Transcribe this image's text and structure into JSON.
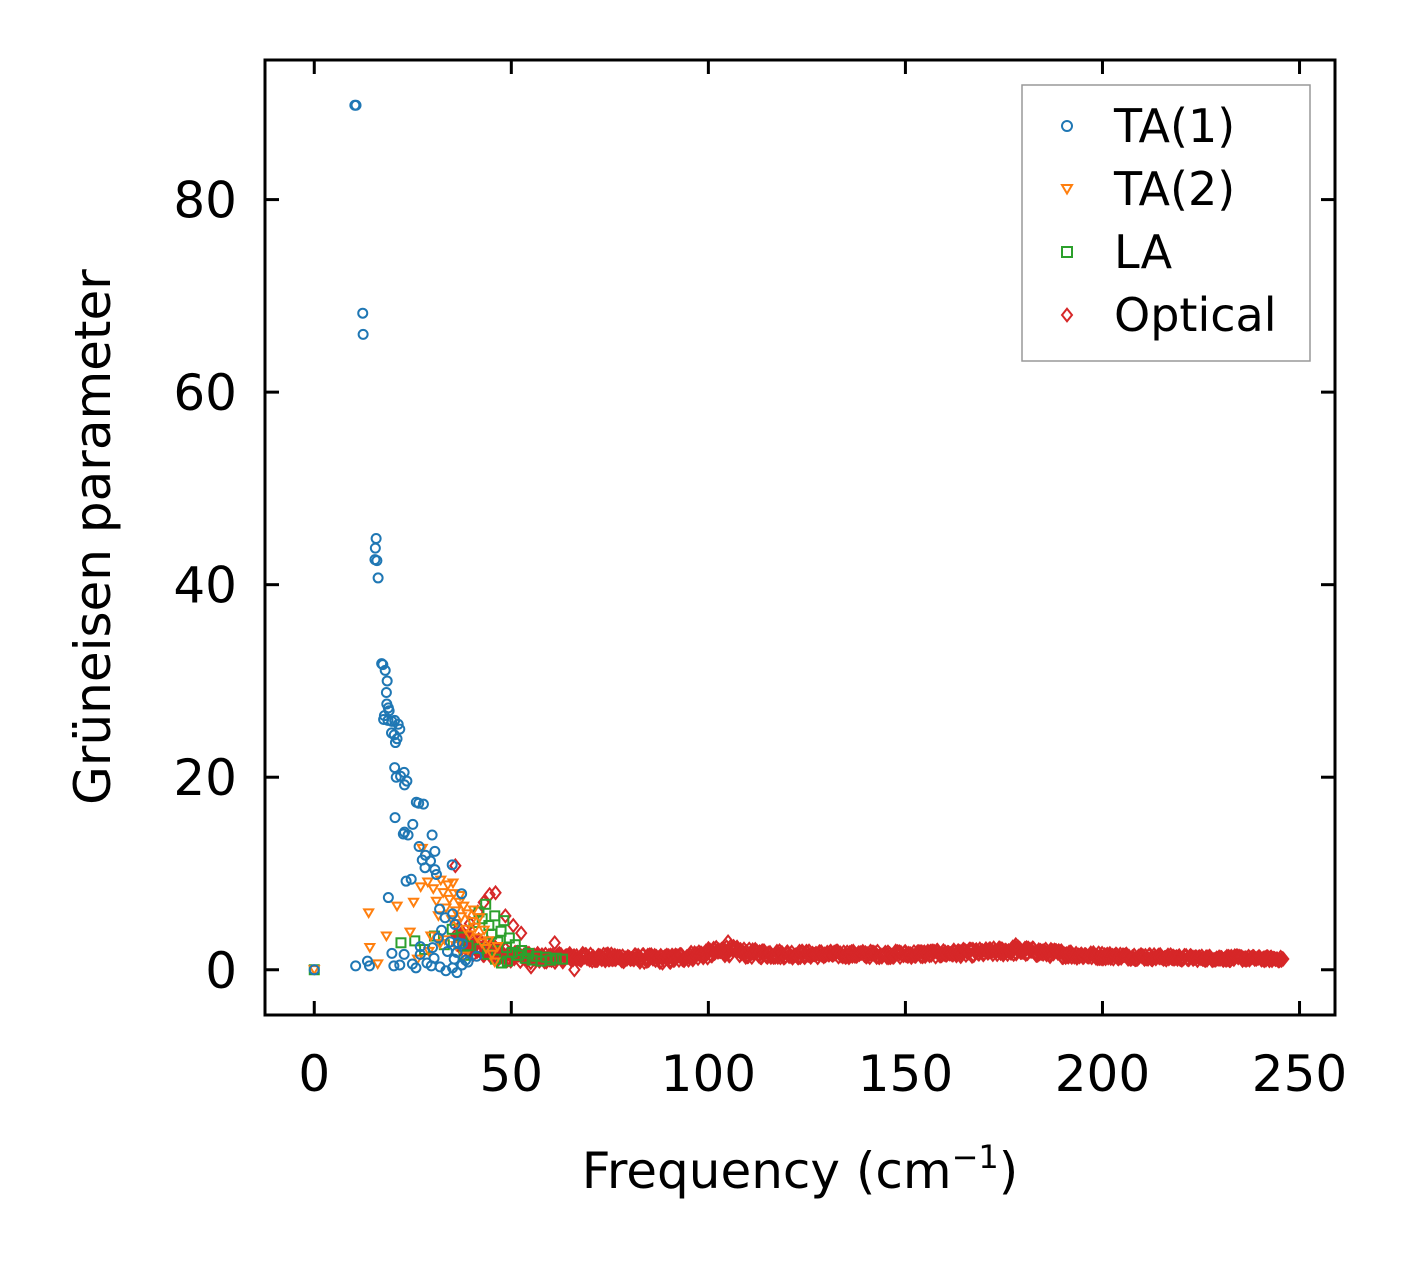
{
  "chart_data": {
    "type": "scatter",
    "title": "",
    "xlabel": "Frequency (cm",
    "xlabel_sup": "−1",
    "xlabel_close": ")",
    "ylabel": "Grüneisen parameter",
    "xlim": [
      -12.5,
      259
    ],
    "ylim": [
      -4.7,
      94.5
    ],
    "xticks": [
      0,
      50,
      100,
      150,
      200,
      250
    ],
    "xtick_labels": [
      "0",
      "50",
      "100",
      "150",
      "200",
      "250"
    ],
    "yticks": [
      0,
      20,
      40,
      60,
      80
    ],
    "ytick_labels": [
      "0",
      "20",
      "40",
      "60",
      "80"
    ],
    "grid": false,
    "legend_position": "top-right",
    "series": [
      {
        "name": "TA(1)",
        "color": "#1f77b4",
        "marker": "circle",
        "points": [
          [
            0,
            0
          ],
          [
            10.3,
            89.8
          ],
          [
            10.6,
            89.8
          ],
          [
            12.3,
            68.2
          ],
          [
            12.4,
            66.0
          ],
          [
            15.7,
            44.8
          ],
          [
            15.5,
            43.8
          ],
          [
            15.4,
            42.6
          ],
          [
            15.9,
            42.5
          ],
          [
            16.2,
            40.7
          ],
          [
            17.1,
            31.8
          ],
          [
            17.4,
            31.7
          ],
          [
            18.0,
            31.1
          ],
          [
            18.5,
            30.0
          ],
          [
            18.3,
            28.8
          ],
          [
            18.4,
            27.6
          ],
          [
            18.8,
            27.2
          ],
          [
            19.0,
            26.9
          ],
          [
            17.8,
            26.4
          ],
          [
            17.6,
            26.0
          ],
          [
            18.7,
            25.9
          ],
          [
            19.7,
            25.8
          ],
          [
            20.4,
            25.9
          ],
          [
            21.3,
            25.5
          ],
          [
            21.7,
            25.0
          ],
          [
            19.6,
            24.6
          ],
          [
            20.3,
            24.4
          ],
          [
            21.0,
            24.0
          ],
          [
            20.6,
            23.6
          ],
          [
            20.4,
            21.0
          ],
          [
            22.8,
            20.5
          ],
          [
            20.8,
            20.0
          ],
          [
            21.9,
            20.1
          ],
          [
            23.5,
            19.6
          ],
          [
            22.9,
            19.2
          ],
          [
            25.9,
            17.4
          ],
          [
            26.5,
            17.3
          ],
          [
            27.7,
            17.2
          ],
          [
            20.5,
            15.8
          ],
          [
            25.0,
            15.1
          ],
          [
            22.9,
            14.3
          ],
          [
            22.6,
            14.1
          ],
          [
            23.8,
            14.0
          ],
          [
            29.9,
            14.0
          ],
          [
            26.6,
            12.8
          ],
          [
            30.6,
            12.3
          ],
          [
            28.2,
            11.9
          ],
          [
            27.4,
            11.4
          ],
          [
            29.5,
            11.3
          ],
          [
            35.0,
            10.9
          ],
          [
            28.1,
            10.6
          ],
          [
            30.6,
            10.4
          ],
          [
            31.0,
            9.9
          ],
          [
            23.3,
            9.2
          ],
          [
            24.6,
            9.4
          ],
          [
            37.4,
            7.9
          ],
          [
            18.8,
            7.5
          ],
          [
            31.8,
            6.3
          ],
          [
            35.1,
            5.8
          ],
          [
            33.2,
            5.4
          ],
          [
            35.7,
            4.7
          ],
          [
            32.3,
            4.1
          ],
          [
            31.5,
            3.3
          ],
          [
            34.5,
            2.9
          ],
          [
            36.5,
            2.8
          ],
          [
            37.6,
            2.7
          ],
          [
            26.9,
            2.4
          ],
          [
            30.0,
            2.3
          ],
          [
            33.8,
            1.9
          ],
          [
            36.2,
            1.8
          ],
          [
            19.7,
            1.7
          ],
          [
            22.8,
            1.6
          ],
          [
            26.9,
            1.6
          ],
          [
            30.4,
            1.2
          ],
          [
            35.5,
            1.1
          ],
          [
            38.4,
            1.0
          ],
          [
            13.5,
            0.9
          ],
          [
            24.9,
            0.6
          ],
          [
            28.6,
            0.7
          ],
          [
            31.9,
            0.3
          ],
          [
            35.1,
            0.2
          ],
          [
            37.5,
            0.5
          ],
          [
            10.5,
            0.4
          ],
          [
            14.0,
            0.4
          ],
          [
            20.2,
            0.4
          ],
          [
            21.7,
            0.5
          ],
          [
            25.8,
            0.2
          ],
          [
            29.7,
            0.4
          ],
          [
            33.4,
            -0.1
          ],
          [
            36.2,
            -0.3
          ],
          [
            39.0,
            0.8
          ],
          [
            41.2,
            1.4
          ]
        ]
      },
      {
        "name": "TA(2)",
        "color": "#ff7f0e",
        "marker": "triangle-down",
        "points": [
          [
            0,
            0
          ],
          [
            13.8,
            5.9
          ],
          [
            14.1,
            2.3
          ],
          [
            16.1,
            0.6
          ],
          [
            18.3,
            3.5
          ],
          [
            21.0,
            6.6
          ],
          [
            24.3,
            3.9
          ],
          [
            25.2,
            7.0
          ],
          [
            27.0,
            8.6
          ],
          [
            27.4,
            12.6
          ],
          [
            28.8,
            9.1
          ],
          [
            29.6,
            3.5
          ],
          [
            30.2,
            8.4
          ],
          [
            31.0,
            7.1
          ],
          [
            31.5,
            5.6
          ],
          [
            32.1,
            9.3
          ],
          [
            32.7,
            8.0
          ],
          [
            33.4,
            6.4
          ],
          [
            33.9,
            8.8
          ],
          [
            34.3,
            7.3
          ],
          [
            34.9,
            5.2
          ],
          [
            35.4,
            7.9
          ],
          [
            35.9,
            6.1
          ],
          [
            36.3,
            4.8
          ],
          [
            36.8,
            7.0
          ],
          [
            37.3,
            5.5
          ],
          [
            37.9,
            6.6
          ],
          [
            38.4,
            4.2
          ],
          [
            38.8,
            5.8
          ],
          [
            39.4,
            3.6
          ],
          [
            39.9,
            5.0
          ],
          [
            40.4,
            6.2
          ],
          [
            40.9,
            4.4
          ],
          [
            41.4,
            3.3
          ],
          [
            41.9,
            5.4
          ],
          [
            42.5,
            2.8
          ],
          [
            43.1,
            4.1
          ],
          [
            43.6,
            2.2
          ],
          [
            44.2,
            3.0
          ],
          [
            45.1,
            1.6
          ],
          [
            45.8,
            0.8
          ],
          [
            46.5,
            2.4
          ],
          [
            29.1,
            1.9
          ],
          [
            26.2,
            1.1
          ],
          [
            33.1,
            3.1
          ],
          [
            36.0,
            2.5
          ],
          [
            38.1,
            1.4
          ],
          [
            31.9,
            2.7
          ],
          [
            35.2,
            9.0
          ],
          [
            37.0,
            7.7
          ]
        ]
      },
      {
        "name": "LA",
        "color": "#2ca02c",
        "marker": "square",
        "points": [
          [
            0,
            0
          ],
          [
            22.0,
            2.8
          ],
          [
            25.5,
            3.0
          ],
          [
            28.0,
            2.1
          ],
          [
            30.5,
            3.5
          ],
          [
            33.0,
            2.6
          ],
          [
            35.0,
            4.2
          ],
          [
            37.5,
            3.4
          ],
          [
            39.0,
            2.5
          ],
          [
            40.5,
            4.9
          ],
          [
            41.8,
            6.0
          ],
          [
            42.6,
            5.3
          ],
          [
            43.5,
            6.8
          ],
          [
            44.3,
            4.6
          ],
          [
            45.0,
            3.7
          ],
          [
            45.8,
            5.6
          ],
          [
            46.6,
            2.9
          ],
          [
            47.4,
            4.0
          ],
          [
            48.1,
            5.1
          ],
          [
            48.8,
            2.3
          ],
          [
            49.5,
            3.3
          ],
          [
            50.2,
            1.8
          ],
          [
            51.0,
            2.6
          ],
          [
            51.8,
            1.5
          ],
          [
            52.6,
            2.0
          ],
          [
            53.5,
            1.2
          ],
          [
            54.4,
            1.7
          ],
          [
            55.3,
            1.0
          ],
          [
            56.4,
            1.4
          ],
          [
            57.5,
            0.9
          ],
          [
            58.8,
            1.3
          ],
          [
            60.0,
            1.0
          ],
          [
            61.4,
            1.2
          ],
          [
            63.0,
            1.1
          ],
          [
            44.0,
            1.6
          ],
          [
            46.0,
            1.1
          ],
          [
            47.5,
            0.7
          ],
          [
            42.0,
            2.2
          ],
          [
            38.0,
            1.5
          ],
          [
            49.0,
            0.9
          ]
        ]
      },
      {
        "name": "Optical",
        "color": "#d62728",
        "marker": "diamond",
        "band": {
          "x": [
            36,
            40,
            44,
            48,
            52,
            56,
            60,
            65,
            70,
            80,
            90,
            95,
            100,
            105,
            110,
            120,
            130,
            140,
            150,
            160,
            170,
            178,
            185,
            195,
            205,
            215,
            225,
            235,
            246
          ],
          "center": [
            3.2,
            2.5,
            2.0,
            1.6,
            1.4,
            1.2,
            1.2,
            1.3,
            1.3,
            1.2,
            1.1,
            1.4,
            1.7,
            2.0,
            1.7,
            1.6,
            1.6,
            1.6,
            1.6,
            1.7,
            1.8,
            2.0,
            1.8,
            1.5,
            1.4,
            1.3,
            1.2,
            1.2,
            1.1
          ],
          "spread": [
            2.6,
            2.2,
            1.8,
            1.3,
            1.1,
            1.0,
            0.9,
            0.9,
            0.8,
            0.8,
            0.9,
            0.9,
            1.0,
            1.1,
            0.9,
            0.8,
            0.7,
            0.7,
            0.7,
            0.7,
            0.8,
            0.9,
            0.8,
            0.7,
            0.6,
            0.6,
            0.5,
            0.5,
            0.4
          ]
        },
        "outliers": [
          [
            35.8,
            10.8
          ],
          [
            44.5,
            7.8
          ],
          [
            46.0,
            8.0
          ],
          [
            43.0,
            7.0
          ],
          [
            41.5,
            6.0
          ],
          [
            48.5,
            5.6
          ],
          [
            50.5,
            4.6
          ],
          [
            52.5,
            3.8
          ],
          [
            39.5,
            4.8
          ],
          [
            37.5,
            3.5
          ],
          [
            61.0,
            2.8
          ],
          [
            66.0,
            0.0
          ],
          [
            55.0,
            0.3
          ],
          [
            105.0,
            2.9
          ],
          [
            178.0,
            2.6
          ]
        ]
      }
    ]
  }
}
